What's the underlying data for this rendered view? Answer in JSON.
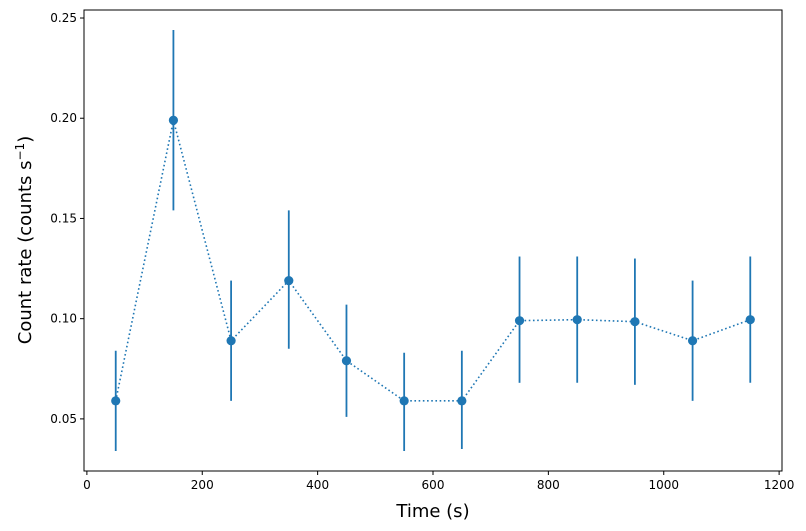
{
  "chart_data": {
    "type": "scatter",
    "xlabel": "Time (s)",
    "ylabel_main": "Count rate (counts s",
    "ylabel_sup": "−1",
    "ylabel_close": ")",
    "xlim": [
      -5,
      1205
    ],
    "ylim": [
      0.024,
      0.254
    ],
    "xticks": [
      0,
      200,
      400,
      600,
      800,
      1000,
      1200
    ],
    "xtick_labels": [
      "0",
      "200",
      "400",
      "600",
      "800",
      "1000",
      "1200"
    ],
    "yticks": [
      0.05,
      0.1,
      0.15,
      0.2,
      0.25
    ],
    "ytick_labels": [
      "0.05",
      "0.10",
      "0.15",
      "0.20",
      "0.25"
    ],
    "grid": false,
    "color": "#1f77b4",
    "line_style": "dotted",
    "series": [
      {
        "x": [
          50,
          150,
          250,
          350,
          450,
          550,
          650,
          750,
          850,
          950,
          1050,
          1150
        ],
        "y": [
          0.059,
          0.199,
          0.089,
          0.119,
          0.079,
          0.059,
          0.059,
          0.099,
          0.0995,
          0.0985,
          0.089,
          0.0995
        ],
        "yerr_low": [
          0.034,
          0.154,
          0.059,
          0.085,
          0.051,
          0.034,
          0.035,
          0.068,
          0.068,
          0.067,
          0.059,
          0.068
        ],
        "yerr_high": [
          0.084,
          0.244,
          0.119,
          0.154,
          0.107,
          0.083,
          0.084,
          0.131,
          0.131,
          0.13,
          0.119,
          0.131
        ]
      }
    ]
  }
}
